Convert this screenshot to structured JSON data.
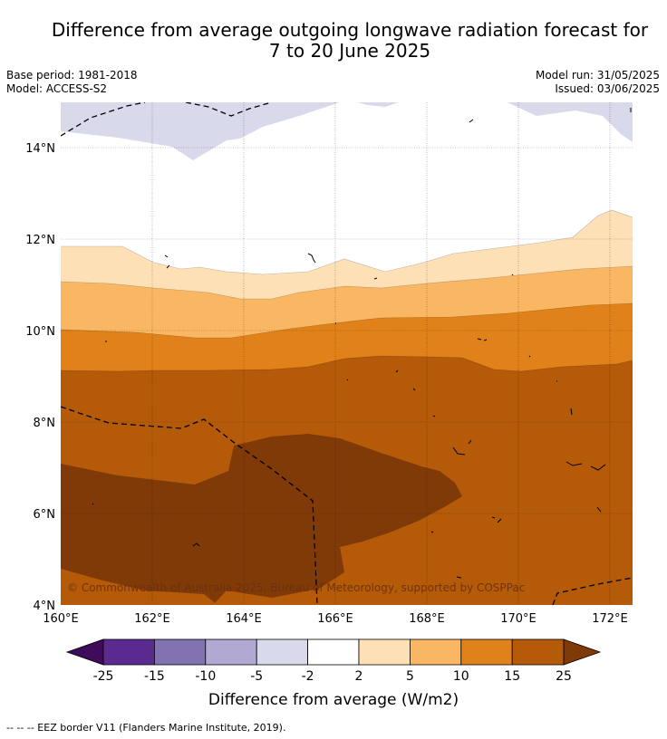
{
  "title": {
    "line1": "Difference from average outgoing longwave radiation forecast for",
    "line2": "7 to 20 June 2025"
  },
  "meta": {
    "base_period": "Base period: 1981-2018",
    "model": "Model: ACCESS-S2",
    "model_run": "Model run: 31/05/2025",
    "issued": "Issued: 03/06/2025"
  },
  "map": {
    "lon_range": [
      160,
      172.5
    ],
    "lat_range": [
      4,
      15
    ],
    "lon_ticks": [
      "160°E",
      "162°E",
      "164°E",
      "166°E",
      "168°E",
      "170°E",
      "172°E"
    ],
    "lat_ticks": [
      "4°N",
      "6°N",
      "8°N",
      "10°N",
      "12°N",
      "14°N"
    ],
    "gridlines": true,
    "copyright": "© Commonwealth of Australia 2025, Bureau of Meteorology, supported by COSPPac"
  },
  "colorbar": {
    "label": "Difference from average (W/m2)",
    "ticks": [
      "-25",
      "-15",
      "-10",
      "-5",
      "-2",
      "2",
      "5",
      "10",
      "15",
      "25"
    ],
    "colors": [
      "#5b2a8e",
      "#8172b2",
      "#b2a9d3",
      "#d9d9ec",
      "#ffffff",
      "#fde0b6",
      "#f9b763",
      "#e08119",
      "#b45a08"
    ],
    "extend_low_color": "#3f0c5c",
    "extend_high_color": "#7f3a08"
  },
  "footer": {
    "legend_text": "--  --  -- EEZ border V11 (Flanders Marine Institute, 2019)."
  }
}
